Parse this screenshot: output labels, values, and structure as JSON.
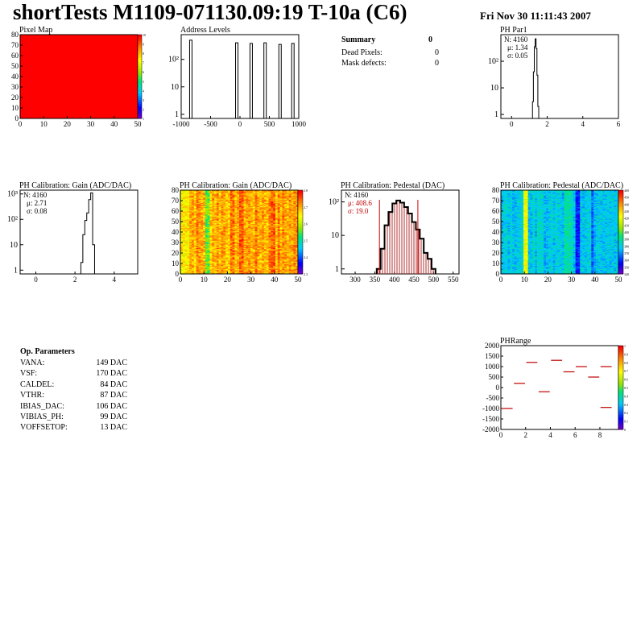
{
  "header": {
    "title": "shortTests M1109-071130.09:19 T-10a (C6)",
    "date": "Fri Nov 30 11:11:43 2007"
  },
  "summary": {
    "title": "Summary",
    "value": "0",
    "rows": [
      {
        "label": "Dead Pixels:",
        "value": "0"
      },
      {
        "label": "Mask defects:",
        "value": "0"
      }
    ]
  },
  "op_params": {
    "title": "Op. Parameters",
    "rows": [
      {
        "label": "VANA:",
        "value": "149 DAC"
      },
      {
        "label": "VSF:",
        "value": "170 DAC"
      },
      {
        "label": "CALDEL:",
        "value": "84 DAC"
      },
      {
        "label": "VTHR:",
        "value": "87 DAC"
      },
      {
        "label": "IBIAS_DAC:",
        "value": "106 DAC"
      },
      {
        "label": "VIBIAS_PH:",
        "value": "99 DAC"
      },
      {
        "label": "VOFFSETOP:",
        "value": "13 DAC"
      }
    ]
  },
  "chart_data": [
    {
      "id": "pixel_map",
      "type": "heatmap",
      "title": "Pixel Map",
      "xlim": [
        0,
        52
      ],
      "ylim": [
        0,
        80
      ],
      "xticks": [
        "0",
        "10",
        "20",
        "30",
        "40",
        "50"
      ],
      "yticks": [
        "0",
        "10",
        "20",
        "30",
        "40",
        "50",
        "60",
        "70",
        "80"
      ],
      "palette_ticks": [
        "10",
        "9",
        "8",
        "7",
        "6",
        "5",
        "4",
        "3",
        "2",
        "1"
      ],
      "uniform_value": 10,
      "fill_color": "#ff0000"
    },
    {
      "id": "address_levels",
      "type": "bar",
      "title": "Address Levels",
      "log_y": true,
      "xlim": [
        -1100,
        1100
      ],
      "xticks": [
        "-1000",
        "-500",
        "0",
        "500",
        "1000"
      ],
      "yticks": [
        "1",
        "10",
        "10²"
      ],
      "peaks": [
        {
          "x": -920,
          "height": 500
        },
        {
          "x": -60,
          "height": 400
        },
        {
          "x": 210,
          "height": 380
        },
        {
          "x": 470,
          "height": 400
        },
        {
          "x": 750,
          "height": 350
        },
        {
          "x": 990,
          "height": 380
        }
      ]
    },
    {
      "id": "ph_par1",
      "type": "bar",
      "title": "PH Par1",
      "log_y": true,
      "stats": {
        "n": "N: 4160",
        "mean": "μ: 1.34",
        "sigma": "σ: 0.05"
      },
      "xlim": [
        -0.6,
        6
      ],
      "xticks": [
        "0",
        "2",
        "4",
        "6"
      ],
      "yticks": [
        "1",
        "10",
        "10²"
      ],
      "x": [
        1.2,
        1.25,
        1.3,
        1.35,
        1.4,
        1.45,
        1.5
      ],
      "values": [
        3,
        40,
        350,
        700,
        300,
        30,
        2
      ]
    },
    {
      "id": "gain_1d",
      "type": "bar",
      "title": "PH Calibration: Gain (ADC/DAC)",
      "log_y": true,
      "stats": {
        "n": "N: 4160",
        "mean": "μ: 2.71",
        "sigma": "σ: 0.08"
      },
      "xlim": [
        -0.8,
        5.2
      ],
      "xticks": [
        "0",
        "2",
        "4"
      ],
      "yticks": [
        "1",
        "10",
        "10²",
        "10³"
      ],
      "x": [
        2.35,
        2.45,
        2.55,
        2.65,
        2.75,
        2.85,
        2.95
      ],
      "values": [
        2,
        25,
        90,
        180,
        600,
        1100,
        10
      ]
    },
    {
      "id": "gain_2d",
      "type": "heatmap",
      "title": "PH Calibration: Gain (ADC/DAC)",
      "xlim": [
        0,
        52
      ],
      "ylim": [
        0,
        80
      ],
      "xticks": [
        "0",
        "10",
        "20",
        "30",
        "40",
        "50"
      ],
      "yticks": [
        "0",
        "10",
        "20",
        "30",
        "40",
        "50",
        "60",
        "70",
        "80"
      ],
      "palette_ticks": [
        "2.8",
        "2.7",
        "2.6",
        "2.5",
        "2.4",
        "2.3"
      ],
      "zlim": [
        2.25,
        2.85
      ]
    },
    {
      "id": "pedestal_1d",
      "type": "bar",
      "title": "PH Calibration: Pedestal (DAC)",
      "log_y": true,
      "stats": {
        "n": "N: 4160",
        "mean": "μ: 408.6",
        "sigma": "σ: 19.0"
      },
      "xlim": [
        265,
        565
      ],
      "xticks": [
        "300",
        "350",
        "400",
        "450",
        "500",
        "550"
      ],
      "yticks": [
        "1",
        "10",
        "10²"
      ],
      "x": [
        360,
        370,
        380,
        390,
        400,
        410,
        420,
        430,
        440,
        450,
        460,
        470,
        480,
        490,
        500
      ],
      "values": [
        1,
        4,
        20,
        50,
        90,
        110,
        95,
        70,
        45,
        25,
        15,
        8,
        3,
        2,
        1
      ],
      "marker_lines": [
        362,
        460
      ]
    },
    {
      "id": "pedestal_2d",
      "type": "heatmap",
      "title": "PH Calibration: Pedestal (ADC/DAC)",
      "xlim": [
        0,
        52
      ],
      "ylim": [
        0,
        80
      ],
      "xticks": [
        "0",
        "10",
        "20",
        "30",
        "40",
        "50"
      ],
      "yticks": [
        "0",
        "10",
        "20",
        "30",
        "40",
        "50",
        "60",
        "70",
        "80"
      ],
      "palette_ticks": [
        "460",
        "450",
        "440",
        "430",
        "420",
        "410",
        "400",
        "390",
        "380",
        "370",
        "360",
        "350",
        "340"
      ],
      "zlim": [
        340,
        460
      ]
    },
    {
      "id": "ph_range",
      "type": "scatter",
      "title": "PHRange",
      "xlim": [
        0,
        9.5
      ],
      "ylim": [
        -2000,
        2000
      ],
      "xticks": [
        "0",
        "2",
        "4",
        "6",
        "8"
      ],
      "yticks": [
        "2000",
        "1500",
        "1000",
        "500",
        "0",
        "-500",
        "-1000",
        "-1500",
        "-2000"
      ],
      "palette_ticks": [
        "1",
        "0.9",
        "0.8",
        "0.7",
        "0.6",
        "0.5",
        "0.4",
        "0.3",
        "0.2",
        "0.1",
        "0"
      ],
      "segments": [
        {
          "x": 0.5,
          "y": -1000
        },
        {
          "x": 1.5,
          "y": 200
        },
        {
          "x": 2.5,
          "y": 1200
        },
        {
          "x": 3.5,
          "y": -200
        },
        {
          "x": 4.5,
          "y": 1300
        },
        {
          "x": 5.5,
          "y": 750
        },
        {
          "x": 6.5,
          "y": 1000
        },
        {
          "x": 7.5,
          "y": 500
        },
        {
          "x": 8.5,
          "y": 1000
        },
        {
          "x": 8.5,
          "y": -950
        }
      ]
    }
  ]
}
